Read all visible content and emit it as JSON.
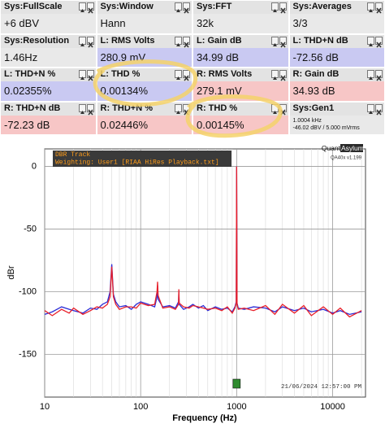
{
  "panels": [
    {
      "label": "Sys:FullScale",
      "value": "+6 dBV",
      "channel": "sys"
    },
    {
      "label": "Sys:Window",
      "value": "Hann",
      "channel": "sys"
    },
    {
      "label": "Sys:FFT",
      "value": "32k",
      "channel": "sys"
    },
    {
      "label": "Sys:Averages",
      "value": "3/3",
      "channel": "sys"
    },
    {
      "label": "Sys:Resolution",
      "value": "1.46Hz",
      "channel": "sys"
    },
    {
      "label": "L: RMS Volts",
      "value": "280.9 mV",
      "channel": "left"
    },
    {
      "label": "L: Gain dB",
      "value": "34.99 dB",
      "channel": "left"
    },
    {
      "label": "L: THD+N dB",
      "value": "-72.56 dB",
      "channel": "left"
    },
    {
      "label": "L: THD+N %",
      "value": "0.02355%",
      "channel": "left"
    },
    {
      "label": "L: THD %",
      "value": "0.00134%",
      "channel": "left"
    },
    {
      "label": "R: RMS Volts",
      "value": "279.1 mV",
      "channel": "right"
    },
    {
      "label": "R: Gain dB",
      "value": "34.93 dB",
      "channel": "right"
    },
    {
      "label": "R: THD+N dB",
      "value": "-72.23 dB",
      "channel": "right"
    },
    {
      "label": "R: THD+N %",
      "value": "0.02446%",
      "channel": "right"
    },
    {
      "label": "R: THD %",
      "value": "0.00145%",
      "channel": "right"
    },
    {
      "label": "Sys:Gen1",
      "details": [
        "1.0004 kHz",
        "-46.02 dBV / 5.000 mVrms"
      ],
      "channel": "sys"
    }
  ],
  "chart_data": {
    "type": "line",
    "x_label": "Frequency (Hz)",
    "y_label": "dBr",
    "annotation": [
      "DBR Track",
      "Weighting: User1 [RIAA HiRes Playback.txt]"
    ],
    "logo": [
      "Quant",
      "Asylum"
    ],
    "version": "QA40x v1.199",
    "timestamp": "21/06/2024 12:57:00 PM",
    "x_log": true,
    "grid": true,
    "xlim": [
      10,
      22000
    ],
    "ylim": [
      -184,
      14
    ],
    "xticks": [
      10,
      100,
      1000,
      10000
    ],
    "yticks": [
      0,
      -50,
      -100,
      -150
    ],
    "marker": {
      "x": 1000,
      "color": "#2e8b2e"
    },
    "x": [
      10,
      12,
      15,
      18,
      20,
      25,
      30,
      35,
      40,
      45,
      48,
      50,
      52,
      55,
      60,
      70,
      80,
      90,
      100,
      120,
      140,
      148,
      150,
      152,
      170,
      200,
      230,
      248,
      250,
      252,
      280,
      320,
      350,
      400,
      450,
      500,
      600,
      700,
      800,
      900,
      960,
      990,
      1000,
      1010,
      1040,
      1200,
      1500,
      2000,
      2500,
      3000,
      4000,
      5000,
      6000,
      8000,
      10000,
      12000,
      15000,
      20000
    ],
    "series": [
      {
        "name": "L",
        "color": "#2b2bd6",
        "values": [
          -118,
          -116,
          -112,
          -114,
          -115,
          -117,
          -113,
          -114,
          -110,
          -108,
          -100,
          -78,
          -102,
          -108,
          -112,
          -111,
          -114,
          -110,
          -108,
          -110,
          -112,
          -104,
          -95,
          -106,
          -112,
          -111,
          -113,
          -108,
          -100,
          -110,
          -114,
          -112,
          -110,
          -113,
          -111,
          -115,
          -112,
          -114,
          -113,
          -116,
          -112,
          -108,
          0,
          -109,
          -113,
          -114,
          -112,
          -113,
          -116,
          -112,
          -115,
          -113,
          -116,
          -114,
          -117,
          -115,
          -118,
          -116
        ]
      },
      {
        "name": "R",
        "color": "#e8202a",
        "values": [
          -115,
          -119,
          -114,
          -117,
          -113,
          -118,
          -115,
          -112,
          -113,
          -110,
          -104,
          -80,
          -104,
          -110,
          -114,
          -112,
          -112,
          -113,
          -109,
          -111,
          -110,
          -100,
          -92,
          -103,
          -113,
          -112,
          -114,
          -110,
          -98,
          -109,
          -112,
          -113,
          -111,
          -112,
          -113,
          -114,
          -113,
          -115,
          -112,
          -117,
          -113,
          -109,
          0,
          -110,
          -114,
          -113,
          -115,
          -111,
          -118,
          -110,
          -117,
          -111,
          -119,
          -112,
          -118,
          -113,
          -120,
          -115
        ]
      }
    ]
  }
}
